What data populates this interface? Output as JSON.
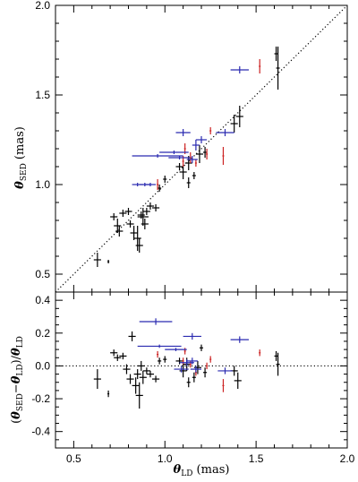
{
  "chart_data": [
    {
      "type": "scatter",
      "panel": "top",
      "title": "",
      "xlabel": "",
      "ylabel": "θSED (mas)",
      "ylabel_parts": {
        "symbol": "θ",
        "sub": "SED",
        "rest": " (mas)"
      },
      "xlim": [
        0.4,
        2.0
      ],
      "ylim": [
        0.4,
        2.0
      ],
      "xticks": [
        0.5,
        1.0,
        1.5,
        2.0
      ],
      "xtick_labels_shown": false,
      "yticks": [
        0.5,
        1.0,
        1.5,
        2.0
      ],
      "ytick_labels": [
        "0.5",
        "1.0",
        "1.5",
        "2.0"
      ],
      "reference_line": {
        "style": "dotted",
        "label": "",
        "x": [
          0.4,
          2.0
        ],
        "y": [
          0.4,
          2.0
        ]
      },
      "grid": false,
      "legend": "none",
      "series": [
        {
          "color": "#000000",
          "points": [
            {
              "x": 0.63,
              "y": 0.58,
              "xerr": 0.02,
              "yerr": 0.04
            },
            {
              "x": 0.69,
              "y": 0.57,
              "xerr": 0.005,
              "yerr": 0.01
            },
            {
              "x": 0.72,
              "y": 0.82,
              "xerr": 0.02,
              "yerr": 0.02
            },
            {
              "x": 0.74,
              "y": 0.77,
              "xerr": 0.02,
              "yerr": 0.04
            },
            {
              "x": 0.75,
              "y": 0.74,
              "xerr": 0.02,
              "yerr": 0.03
            },
            {
              "x": 0.77,
              "y": 0.84,
              "xerr": 0.02,
              "yerr": 0.02
            },
            {
              "x": 0.8,
              "y": 0.85,
              "xerr": 0.02,
              "yerr": 0.02
            },
            {
              "x": 0.81,
              "y": 0.78,
              "xerr": 0.02,
              "yerr": 0.02
            },
            {
              "x": 0.83,
              "y": 0.73,
              "xerr": 0.02,
              "yerr": 0.04
            },
            {
              "x": 0.85,
              "y": 0.7,
              "xerr": 0.02,
              "yerr": 0.07
            },
            {
              "x": 0.86,
              "y": 0.66,
              "xerr": 0.02,
              "yerr": 0.04
            },
            {
              "x": 0.87,
              "y": 0.83,
              "xerr": 0.02,
              "yerr": 0.02
            },
            {
              "x": 0.88,
              "y": 0.82,
              "xerr": 0.03,
              "yerr": 0.05
            },
            {
              "x": 0.89,
              "y": 0.78,
              "xerr": 0.02,
              "yerr": 0.03
            },
            {
              "x": 0.9,
              "y": 0.85,
              "xerr": 0.02,
              "yerr": 0.02
            },
            {
              "x": 0.92,
              "y": 0.88,
              "xerr": 0.02,
              "yerr": 0.02
            },
            {
              "x": 0.95,
              "y": 0.87,
              "xerr": 0.02,
              "yerr": 0.02
            },
            {
              "x": 0.97,
              "y": 0.98,
              "xerr": 0.01,
              "yerr": 0.02
            },
            {
              "x": 1.0,
              "y": 1.03,
              "xerr": 0.01,
              "yerr": 0.02
            },
            {
              "x": 1.08,
              "y": 1.1,
              "xerr": 0.02,
              "yerr": 0.02
            },
            {
              "x": 1.1,
              "y": 1.07,
              "xerr": 0.02,
              "yerr": 0.04
            },
            {
              "x": 1.13,
              "y": 1.12,
              "xerr": 0.02,
              "yerr": 0.04
            },
            {
              "x": 1.13,
              "y": 1.01,
              "xerr": 0.01,
              "yerr": 0.03
            },
            {
              "x": 1.16,
              "y": 1.05,
              "xerr": 0.01,
              "yerr": 0.02
            },
            {
              "x": 1.19,
              "y": 1.17,
              "xerr": 0.02,
              "yerr": 0.05
            },
            {
              "x": 1.22,
              "y": 1.18,
              "xerr": 0.01,
              "yerr": 0.03
            },
            {
              "x": 1.38,
              "y": 1.34,
              "xerr": 0.02,
              "yerr": 0.05
            },
            {
              "x": 1.41,
              "y": 1.38,
              "xerr": 0.02,
              "yerr": 0.06
            },
            {
              "x": 1.61,
              "y": 1.73,
              "xerr": 0.01,
              "yerr": 0.04
            },
            {
              "x": 1.62,
              "y": 1.65,
              "xerr": 0.01,
              "yerr": 0.12
            }
          ]
        },
        {
          "color": "#cc2222",
          "points": [
            {
              "x": 0.96,
              "y": 1.0,
              "xerr": 0.005,
              "yerr": 0.03
            },
            {
              "x": 1.1,
              "y": 1.13,
              "xerr": 0.005,
              "yerr": 0.03
            },
            {
              "x": 1.11,
              "y": 1.2,
              "xerr": 0.005,
              "yerr": 0.03
            },
            {
              "x": 1.14,
              "y": 1.15,
              "xerr": 0.005,
              "yerr": 0.03
            },
            {
              "x": 1.17,
              "y": 1.12,
              "xerr": 0.005,
              "yerr": 0.02
            },
            {
              "x": 1.23,
              "y": 1.17,
              "xerr": 0.005,
              "yerr": 0.03
            },
            {
              "x": 1.25,
              "y": 1.3,
              "xerr": 0.005,
              "yerr": 0.02
            },
            {
              "x": 1.32,
              "y": 1.16,
              "xerr": 0.005,
              "yerr": 0.05
            },
            {
              "x": 1.52,
              "y": 1.66,
              "xerr": 0.005,
              "yerr": 0.04
            }
          ]
        },
        {
          "color": "#2a2ab0",
          "points": [
            {
              "x": 0.85,
              "y": 1.0,
              "xerr": 0.03,
              "yerr": 0.01
            },
            {
              "x": 0.89,
              "y": 1.0,
              "xerr": 0.03,
              "yerr": 0.01
            },
            {
              "x": 0.92,
              "y": 1.0,
              "xerr": 0.03,
              "yerr": 0.01
            },
            {
              "x": 0.96,
              "y": 1.16,
              "xerr": 0.14,
              "yerr": 0.01
            },
            {
              "x": 1.05,
              "y": 1.18,
              "xerr": 0.08,
              "yerr": 0.01
            },
            {
              "x": 1.08,
              "y": 1.15,
              "xerr": 0.06,
              "yerr": 0.01
            },
            {
              "x": 1.1,
              "y": 1.29,
              "xerr": 0.04,
              "yerr": 0.02
            },
            {
              "x": 1.15,
              "y": 1.14,
              "xerr": 0.03,
              "yerr": 0.02
            },
            {
              "x": 1.17,
              "y": 1.22,
              "xerr": 0.02,
              "yerr": 0.03
            },
            {
              "x": 1.2,
              "y": 1.25,
              "xerr": 0.03,
              "yerr": 0.02
            },
            {
              "x": 1.33,
              "y": 1.29,
              "xerr": 0.05,
              "yerr": 0.02
            },
            {
              "x": 1.41,
              "y": 1.64,
              "xerr": 0.05,
              "yerr": 0.02
            }
          ]
        }
      ]
    },
    {
      "type": "scatter",
      "panel": "bottom",
      "title": "",
      "xlabel": "θLD (mas)",
      "xlabel_parts": {
        "symbol": "θ",
        "sub": "LD",
        "rest": " (mas)"
      },
      "ylabel": "(θSED−θLD)/θLD",
      "ylabel_parts": {
        "open": "(",
        "s1": "θ",
        "sub1": "SED",
        "op": "−",
        "s2": "θ",
        "sub2": "LD",
        "close": ")/",
        "s3": "θ",
        "sub3": "LD"
      },
      "xlim": [
        0.4,
        2.0
      ],
      "ylim": [
        -0.5,
        0.45
      ],
      "xticks": [
        0.5,
        1.0,
        1.5,
        2.0
      ],
      "xtick_labels": [
        "0.5",
        "1.0",
        "1.5",
        "2.0"
      ],
      "yticks": [
        -0.4,
        -0.2,
        0.0,
        0.2,
        0.4
      ],
      "ytick_labels": [
        "-0.4",
        "-0.2",
        "0.0",
        "0.2",
        "0.4"
      ],
      "reference_line": {
        "style": "dotted",
        "label": "",
        "y": 0.0
      },
      "grid": false,
      "legend": "none",
      "series": [
        {
          "color": "#000000",
          "points": [
            {
              "x": 0.63,
              "y": -0.08,
              "xerr": 0.02,
              "yerr": 0.06
            },
            {
              "x": 0.69,
              "y": -0.17,
              "xerr": 0.005,
              "yerr": 0.02
            },
            {
              "x": 0.72,
              "y": 0.08,
              "xerr": 0.02,
              "yerr": 0.02
            },
            {
              "x": 0.74,
              "y": 0.05,
              "xerr": 0.02,
              "yerr": 0.02
            },
            {
              "x": 0.77,
              "y": 0.06,
              "xerr": 0.02,
              "yerr": 0.02
            },
            {
              "x": 0.79,
              "y": -0.02,
              "xerr": 0.02,
              "yerr": 0.03
            },
            {
              "x": 0.81,
              "y": -0.08,
              "xerr": 0.02,
              "yerr": 0.03
            },
            {
              "x": 0.82,
              "y": 0.18,
              "xerr": 0.02,
              "yerr": 0.03
            },
            {
              "x": 0.84,
              "y": -0.12,
              "xerr": 0.02,
              "yerr": 0.05
            },
            {
              "x": 0.85,
              "y": -0.05,
              "xerr": 0.02,
              "yerr": 0.03
            },
            {
              "x": 0.86,
              "y": -0.18,
              "xerr": 0.02,
              "yerr": 0.08
            },
            {
              "x": 0.87,
              "y": 0.0,
              "xerr": 0.02,
              "yerr": 0.03
            },
            {
              "x": 0.88,
              "y": -0.07,
              "xerr": 0.02,
              "yerr": 0.04
            },
            {
              "x": 0.9,
              "y": -0.03,
              "xerr": 0.02,
              "yerr": 0.02
            },
            {
              "x": 0.92,
              "y": -0.05,
              "xerr": 0.02,
              "yerr": 0.02
            },
            {
              "x": 0.95,
              "y": -0.08,
              "xerr": 0.02,
              "yerr": 0.02
            },
            {
              "x": 0.97,
              "y": 0.03,
              "xerr": 0.01,
              "yerr": 0.02
            },
            {
              "x": 1.0,
              "y": 0.04,
              "xerr": 0.01,
              "yerr": 0.02
            },
            {
              "x": 1.08,
              "y": 0.03,
              "xerr": 0.02,
              "yerr": 0.02
            },
            {
              "x": 1.1,
              "y": -0.03,
              "xerr": 0.02,
              "yerr": 0.04
            },
            {
              "x": 1.12,
              "y": 0.01,
              "xerr": 0.02,
              "yerr": 0.04
            },
            {
              "x": 1.13,
              "y": -0.1,
              "xerr": 0.01,
              "yerr": 0.03
            },
            {
              "x": 1.16,
              "y": -0.07,
              "xerr": 0.01,
              "yerr": 0.03
            },
            {
              "x": 1.18,
              "y": -0.01,
              "xerr": 0.02,
              "yerr": 0.04
            },
            {
              "x": 1.2,
              "y": 0.11,
              "xerr": 0.01,
              "yerr": 0.02
            },
            {
              "x": 1.22,
              "y": -0.04,
              "xerr": 0.01,
              "yerr": 0.03
            },
            {
              "x": 1.38,
              "y": -0.03,
              "xerr": 0.02,
              "yerr": 0.03
            },
            {
              "x": 1.4,
              "y": -0.09,
              "xerr": 0.02,
              "yerr": 0.05
            },
            {
              "x": 1.61,
              "y": 0.06,
              "xerr": 0.01,
              "yerr": 0.03
            },
            {
              "x": 1.62,
              "y": 0.01,
              "xerr": 0.01,
              "yerr": 0.07
            }
          ]
        },
        {
          "color": "#cc2222",
          "points": [
            {
              "x": 0.96,
              "y": 0.07,
              "xerr": 0.005,
              "yerr": 0.02
            },
            {
              "x": 1.1,
              "y": 0.03,
              "xerr": 0.005,
              "yerr": 0.02
            },
            {
              "x": 1.11,
              "y": 0.09,
              "xerr": 0.005,
              "yerr": 0.02
            },
            {
              "x": 1.14,
              "y": 0.01,
              "xerr": 0.005,
              "yerr": 0.02
            },
            {
              "x": 1.17,
              "y": -0.04,
              "xerr": 0.005,
              "yerr": 0.02
            },
            {
              "x": 1.23,
              "y": 0.0,
              "xerr": 0.005,
              "yerr": 0.02
            },
            {
              "x": 1.25,
              "y": 0.04,
              "xerr": 0.005,
              "yerr": 0.02
            },
            {
              "x": 1.32,
              "y": -0.12,
              "xerr": 0.005,
              "yerr": 0.04
            },
            {
              "x": 1.52,
              "y": 0.08,
              "xerr": 0.005,
              "yerr": 0.02
            }
          ]
        },
        {
          "color": "#2a2ab0",
          "points": [
            {
              "x": 0.95,
              "y": 0.27,
              "xerr": 0.09,
              "yerr": 0.02
            },
            {
              "x": 1.15,
              "y": 0.18,
              "xerr": 0.05,
              "yerr": 0.02
            },
            {
              "x": 0.97,
              "y": 0.12,
              "xerr": 0.12,
              "yerr": 0.01
            },
            {
              "x": 1.06,
              "y": 0.1,
              "xerr": 0.06,
              "yerr": 0.01
            },
            {
              "x": 1.12,
              "y": 0.02,
              "xerr": 0.04,
              "yerr": 0.02
            },
            {
              "x": 1.15,
              "y": 0.03,
              "xerr": 0.03,
              "yerr": 0.02
            },
            {
              "x": 1.17,
              "y": -0.02,
              "xerr": 0.03,
              "yerr": 0.02
            },
            {
              "x": 1.09,
              "y": -0.02,
              "xerr": 0.04,
              "yerr": 0.02
            },
            {
              "x": 1.33,
              "y": -0.03,
              "xerr": 0.04,
              "yerr": 0.02
            },
            {
              "x": 1.41,
              "y": 0.16,
              "xerr": 0.05,
              "yerr": 0.02
            }
          ]
        }
      ]
    }
  ]
}
